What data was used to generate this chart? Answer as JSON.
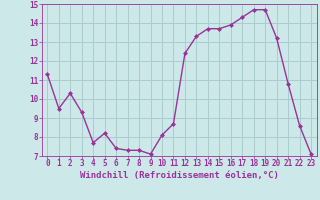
{
  "x": [
    0,
    1,
    2,
    3,
    4,
    5,
    6,
    7,
    8,
    9,
    10,
    11,
    12,
    13,
    14,
    15,
    16,
    17,
    18,
    19,
    20,
    21,
    22,
    23
  ],
  "y": [
    11.3,
    9.5,
    10.3,
    9.3,
    7.7,
    8.2,
    7.4,
    7.3,
    7.3,
    7.1,
    8.1,
    8.7,
    12.4,
    13.3,
    13.7,
    13.7,
    13.9,
    14.3,
    14.7,
    14.7,
    13.2,
    10.8,
    8.6,
    7.1
  ],
  "line_color": "#993399",
  "marker": "D",
  "marker_size": 2.0,
  "linewidth": 1.0,
  "bg_color": "#cce8e8",
  "grid_color": "#aacccc",
  "xlabel": "Windchill (Refroidissement éolien,°C)",
  "tick_color": "#993399",
  "ylim": [
    7,
    15
  ],
  "xlim_min": -0.5,
  "xlim_max": 23.5,
  "yticks": [
    7,
    8,
    9,
    10,
    11,
    12,
    13,
    14,
    15
  ],
  "xticks": [
    0,
    1,
    2,
    3,
    4,
    5,
    6,
    7,
    8,
    9,
    10,
    11,
    12,
    13,
    14,
    15,
    16,
    17,
    18,
    19,
    20,
    21,
    22,
    23
  ],
  "xtick_labels": [
    "0",
    "1",
    "2",
    "3",
    "4",
    "5",
    "6",
    "7",
    "8",
    "9",
    "10",
    "11",
    "12",
    "13",
    "14",
    "15",
    "16",
    "17",
    "18",
    "19",
    "20",
    "21",
    "22",
    "23"
  ],
  "tick_fontsize": 5.5,
  "xlabel_fontsize": 6.5
}
